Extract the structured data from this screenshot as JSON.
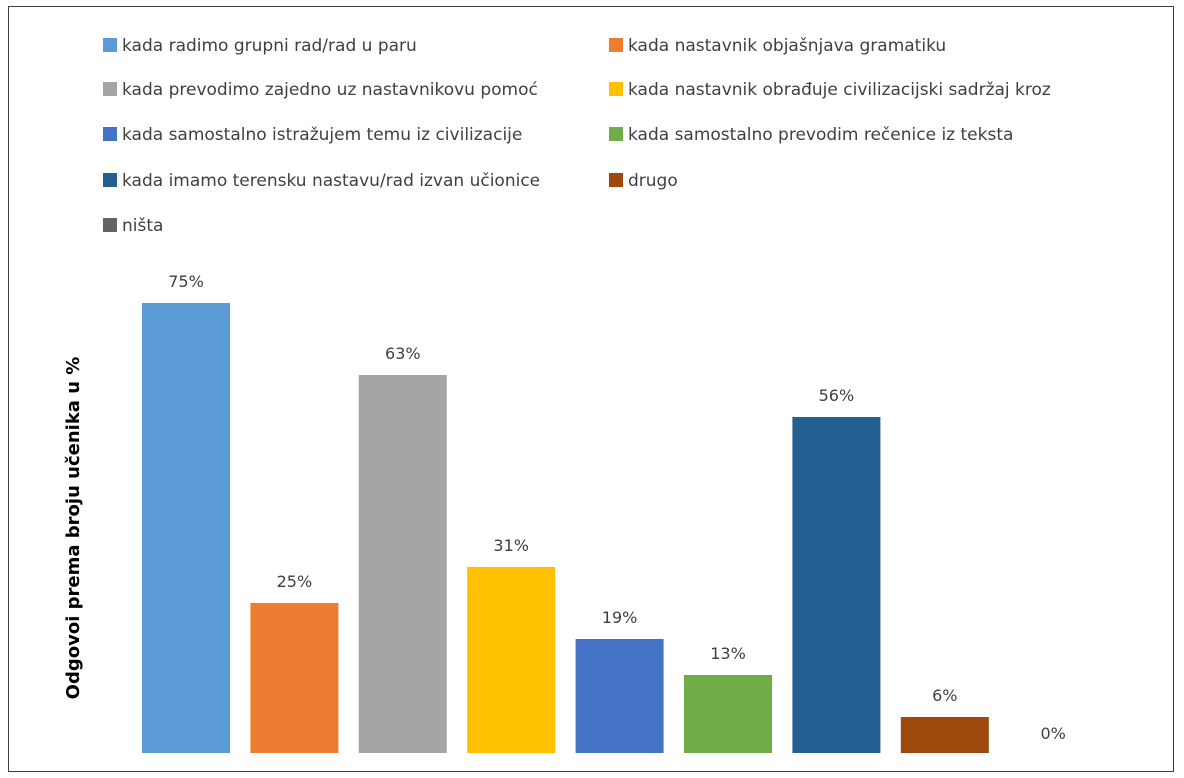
{
  "chart_data": {
    "type": "bar",
    "title": "",
    "xlabel": "",
    "ylabel": "Odgovoi prema broju učenika u %",
    "ylim": [
      0,
      80
    ],
    "grid": false,
    "legend_position": "top",
    "categories": [
      "kada radimo grupni rad/rad u paru",
      "kada nastavnik objašnjava gramatiku",
      "kada prevodimo zajedno uz nastavnikovu pomoć",
      "kada nastavnik obrađuje civilizacijski sadržaj kroz",
      "kada samostalno istražujem temu iz civilizacije",
      "kada samostalno prevodim rečenice iz teksta",
      "kada imamo terensku nastavu/rad izvan učionice",
      "drugo",
      "ništa"
    ],
    "values": [
      75,
      25,
      63,
      31,
      19,
      13,
      56,
      6,
      0
    ],
    "data_labels": [
      "75%",
      "25%",
      "63%",
      "31%",
      "19%",
      "13%",
      "56%",
      "6%",
      "0%"
    ],
    "colors": [
      "#5B9BD5",
      "#ED7D31",
      "#A5A5A5",
      "#FFC000",
      "#4472C4",
      "#70AD47",
      "#255E91",
      "#9E480E",
      "#636363"
    ]
  }
}
